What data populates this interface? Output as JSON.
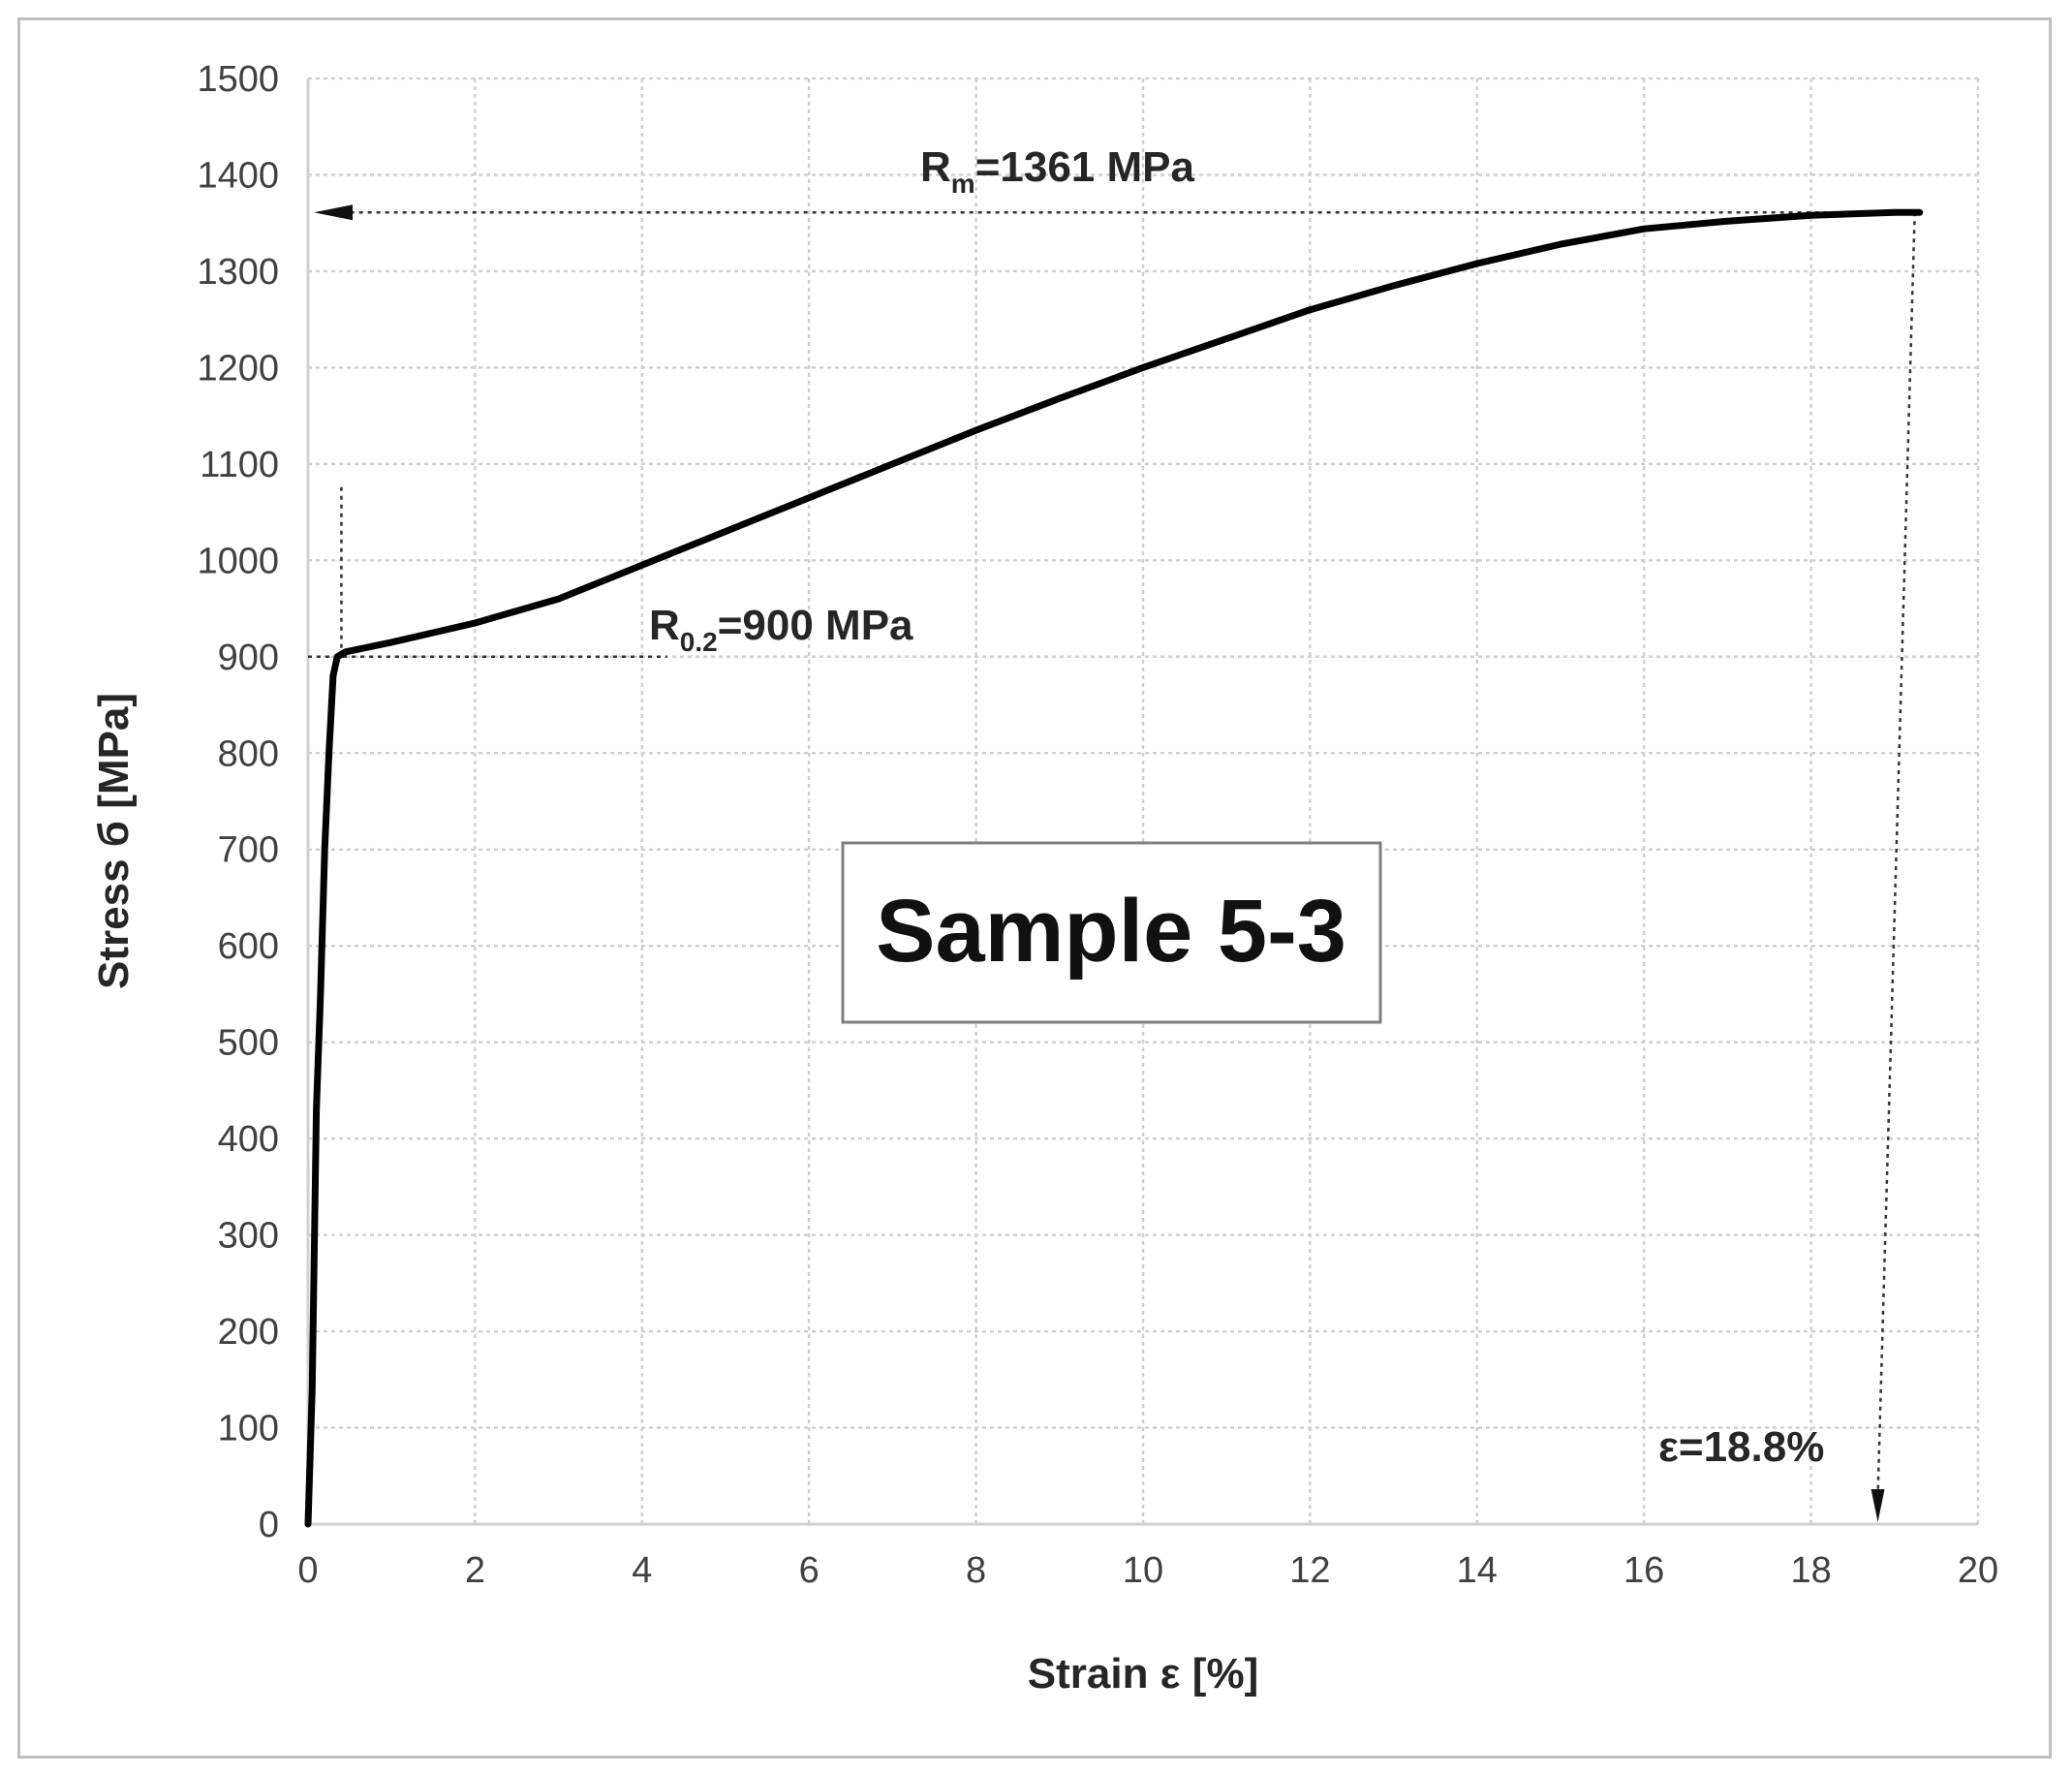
{
  "chart_data": {
    "type": "line",
    "title": "",
    "xlabel": "Strain ε [%]",
    "ylabel": "Stress б [MPa]",
    "xlim": [
      0,
      20
    ],
    "ylim": [
      0,
      1500
    ],
    "xticks": [
      0,
      2,
      4,
      6,
      8,
      10,
      12,
      14,
      16,
      18,
      20
    ],
    "yticks": [
      0,
      100,
      200,
      300,
      400,
      500,
      600,
      700,
      800,
      900,
      1000,
      1100,
      1200,
      1300,
      1400,
      1500
    ],
    "grid": true,
    "series": [
      {
        "name": "",
        "color": "#000000",
        "x": [
          0,
          0.05,
          0.1,
          0.15,
          0.2,
          0.25,
          0.3,
          0.35,
          0.45,
          1.0,
          2.0,
          3.0,
          4.0,
          5.0,
          6.0,
          7.0,
          8.0,
          9.0,
          10.0,
          11.0,
          12.0,
          13.0,
          14.0,
          15.0,
          16.0,
          17.0,
          18.0,
          19.0,
          19.3
        ],
        "y": [
          0,
          140,
          430,
          550,
          700,
          800,
          880,
          900,
          905,
          915,
          935,
          960,
          995,
          1030,
          1065,
          1100,
          1135,
          1168,
          1200,
          1230,
          1260,
          1285,
          1308,
          1328,
          1344,
          1352,
          1358,
          1361,
          1361
        ]
      }
    ],
    "annotations": {
      "rm_label_main": "R",
      "rm_label_sub": "m",
      "rm_label_rest": "=1361 MPa",
      "rm_value": 1361,
      "rm_strain": 19.3,
      "r02_label_main": "R",
      "r02_label_sub": "0.2",
      "r02_label_rest": "=900 MPa",
      "r02_value": 900,
      "r02_strain": 0.4,
      "eps_label": "ε=18.8%",
      "eps_value": 18.8,
      "sample_label": "Sample 5-3"
    }
  }
}
